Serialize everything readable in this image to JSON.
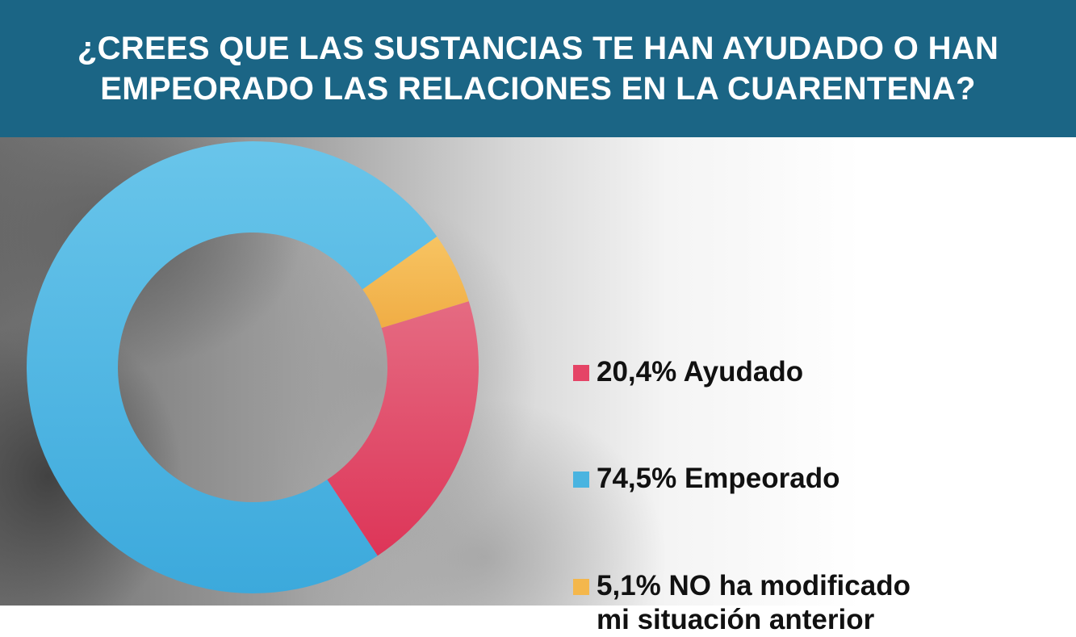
{
  "title": {
    "line1": "¿CREES QUE LAS SUSTANCIAS TE HAN AYUDADO O HAN",
    "line2": "EMPEORADO LAS RELACIONES EN LA CUARENTENA?"
  },
  "colors": {
    "header_bg": "#1b6585",
    "ayudado": "#e54466",
    "empeorado": "#4ab4e0",
    "no_modificado": "#f4b74c"
  },
  "legend": [
    {
      "lines": [
        "20,4% Ayudado"
      ],
      "color": "#e54466"
    },
    {
      "lines": [
        "74,5% Empeorado"
      ],
      "color": "#4ab4e0"
    },
    {
      "lines": [
        "5,1% NO ha modificado",
        "mi situación anterior"
      ],
      "color": "#f4b74c"
    }
  ],
  "chart_data": {
    "type": "pie",
    "donut": true,
    "categories": [
      "Ayudado",
      "Empeorado",
      "NO ha modificado mi situación anterior"
    ],
    "values": [
      20.4,
      74.5,
      5.1
    ],
    "value_labels": [
      "20,4%",
      "74,5%",
      "5,1%"
    ],
    "colors": [
      "#e54466",
      "#4ab4e0",
      "#f4b74c"
    ],
    "legend_position": "right"
  }
}
